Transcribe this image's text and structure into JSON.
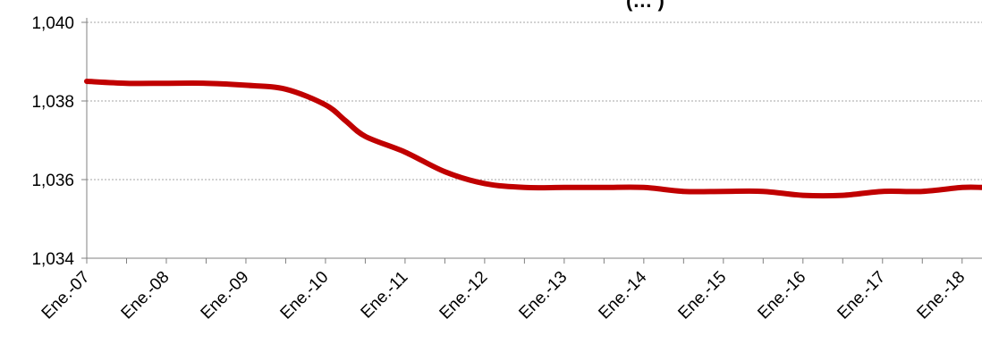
{
  "chart_data": {
    "type": "line",
    "title": "(…                )",
    "xlabel": "",
    "ylabel": "",
    "ylim": [
      1.034,
      1.04
    ],
    "yticks": [
      "1,034",
      "1,036",
      "1,038",
      "1,040"
    ],
    "ytick_values": [
      1.034,
      1.036,
      1.038,
      1.04
    ],
    "xlim": [
      0,
      135
    ],
    "xticks": [
      "Ene.-07",
      "Ene.-08",
      "Ene.-09",
      "Ene.-10",
      "Ene.-11",
      "Ene.-12",
      "Ene.-13",
      "Ene.-14",
      "Ene.-15",
      "Ene.-16",
      "Ene.-17",
      "Ene.-18"
    ],
    "grid": "horizontal-dotted",
    "legend": "none",
    "series": [
      {
        "color": "#c00000",
        "x": [
          0,
          6,
          12,
          18,
          24,
          30,
          36,
          39,
          42,
          48,
          54,
          60,
          66,
          72,
          78,
          84,
          90,
          96,
          102,
          108,
          114,
          120,
          126,
          132,
          135
        ],
        "y": [
          1.0385,
          1.03845,
          1.03845,
          1.03845,
          1.0384,
          1.0383,
          1.0379,
          1.0375,
          1.0371,
          1.0367,
          1.0362,
          1.0359,
          1.0358,
          1.0358,
          1.0358,
          1.0358,
          1.0357,
          1.0357,
          1.0357,
          1.0356,
          1.0356,
          1.0357,
          1.0357,
          1.0358,
          1.0358
        ]
      }
    ]
  }
}
